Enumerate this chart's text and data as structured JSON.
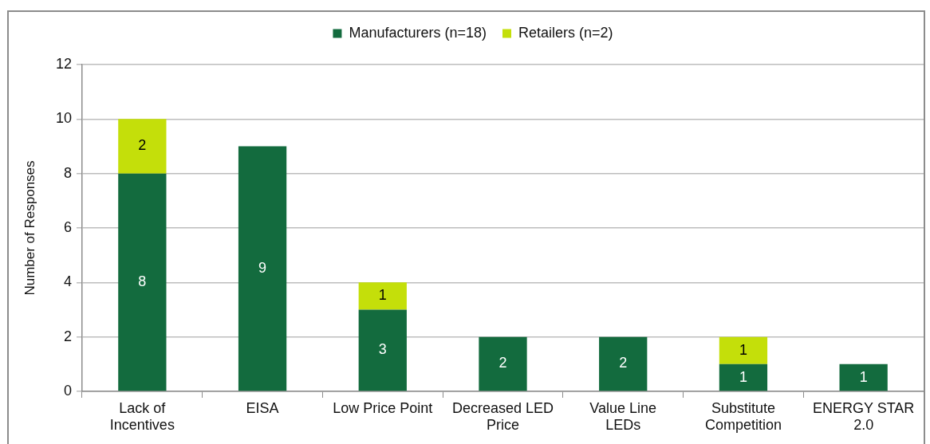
{
  "chart_data": {
    "type": "bar",
    "categories": [
      "Lack of Incentives",
      "EISA",
      "Low Price Point",
      "Decreased LED Price",
      "Value Line LEDs",
      "Substitute Competition",
      "ENERGY STAR 2.0"
    ],
    "series": [
      {
        "name": "Manufacturers (n=18)",
        "color": "#136b3e",
        "values": [
          8,
          9,
          3,
          2,
          2,
          1,
          1
        ]
      },
      {
        "name": "Retailers (n=2)",
        "color": "#c4df0a",
        "values": [
          2,
          null,
          1,
          null,
          null,
          1,
          null
        ]
      }
    ],
    "stacked": true,
    "ylabel": "Number of Responses",
    "ylim": [
      0,
      12
    ],
    "yticks": [
      0,
      2,
      4,
      6,
      8,
      10,
      12
    ],
    "grid": "y",
    "legend": "top",
    "data_labels": true
  }
}
